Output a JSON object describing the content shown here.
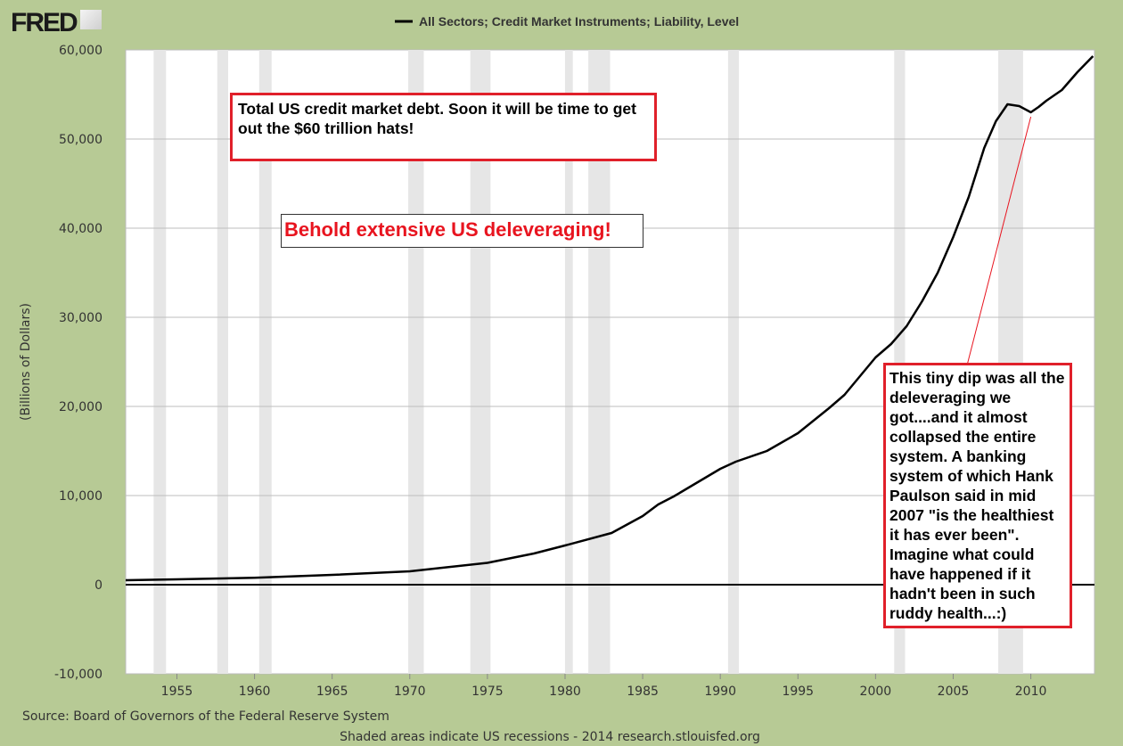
{
  "header": {
    "logo": "FRED",
    "legend_series": "All Sectors; Credit Market Instruments; Liability, Level"
  },
  "footer": {
    "source": "Source: Board of Governors of the Federal Reserve System",
    "note": "Shaded areas indicate US recessions - 2014 research.stlouisfed.org"
  },
  "annotations": {
    "box1": "Total US credit market debt. Soon it will be time to get out the $60 trillion hats!",
    "box2": "Behold extensive US deleveraging!",
    "box3": "This tiny dip was all the deleveraging we got....and it almost collapsed the entire system. A banking system of which Hank Paulson said in mid 2007 \"is the healthiest it has ever been\". Imagine what could have happened if it hadn't been in such ruddy health...:)"
  },
  "colors": {
    "background": "#b7ca95",
    "line": "#000000",
    "recession": "#e6e6e6",
    "annotation_border": "#e0202a"
  },
  "chart_data": {
    "type": "line",
    "title": "",
    "ylabel": "(Billions of Dollars)",
    "xlim": [
      1951.7,
      2014.1
    ],
    "ylim": [
      -10000,
      60000
    ],
    "grid": true,
    "legend_placement": "top",
    "xticks": [
      1955,
      1960,
      1965,
      1970,
      1975,
      1980,
      1985,
      1990,
      1995,
      2000,
      2005,
      2010
    ],
    "yticks": [
      -10000,
      0,
      10000,
      20000,
      30000,
      40000,
      50000,
      60000
    ],
    "ytick_labels": [
      "-10,000",
      "0",
      "10,000",
      "20,000",
      "30,000",
      "40,000",
      "50,000",
      "60,000"
    ],
    "recessions": [
      [
        1953.5,
        1954.3
      ],
      [
        1957.6,
        1958.3
      ],
      [
        1960.3,
        1961.1
      ],
      [
        1969.9,
        1970.9
      ],
      [
        1973.9,
        1975.2
      ],
      [
        1980.0,
        1980.5
      ],
      [
        1981.5,
        1982.9
      ],
      [
        1990.5,
        1991.2
      ],
      [
        2001.2,
        2001.9
      ],
      [
        2007.9,
        2009.5
      ]
    ],
    "series": [
      {
        "name": "All Sectors; Credit Market Instruments; Liability, Level",
        "x": [
          1951.7,
          1955,
          1960,
          1965,
          1970,
          1975,
          1978,
          1980,
          1983,
          1985,
          1986,
          1987,
          1990,
          1991,
          1993,
          1995,
          1997,
          1998,
          2000,
          2001,
          2002,
          2003,
          2004,
          2005,
          2006,
          2007,
          2007.75,
          2008.5,
          2009.25,
          2010,
          2010.5,
          2011,
          2012,
          2013,
          2014
        ],
        "y": [
          500,
          600,
          780,
          1100,
          1500,
          2450,
          3500,
          4400,
          5800,
          7700,
          9000,
          9900,
          13000,
          13800,
          15000,
          17000,
          19800,
          21300,
          25500,
          27000,
          29000,
          31800,
          35000,
          39000,
          43500,
          49000,
          52000,
          53900,
          53700,
          53000,
          53600,
          54300,
          55500,
          57500,
          59300
        ]
      }
    ]
  }
}
